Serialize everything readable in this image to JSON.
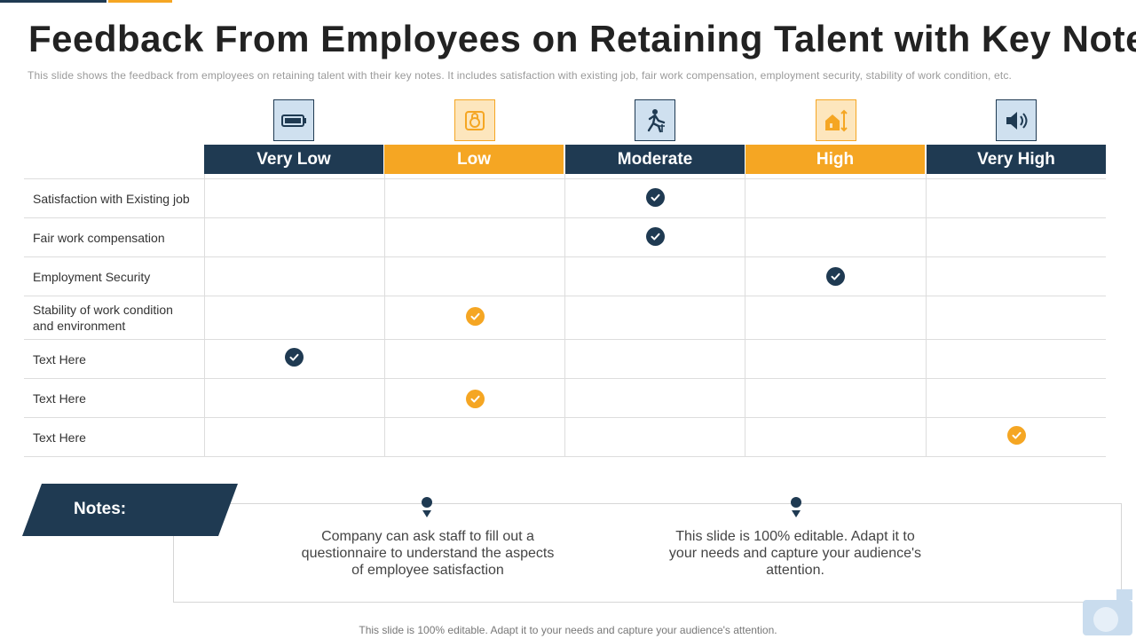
{
  "title": "Feedback From Employees on Retaining Talent with Key Notes",
  "subtitle": "This slide shows the feedback from employees on retaining talent with their key notes. It includes satisfaction with existing job, fair work compensation, employment security, stability of work condition, etc.",
  "columns": [
    {
      "label": "Very Low",
      "icon": "battery-icon",
      "color": "#1f3a52"
    },
    {
      "label": "Low",
      "icon": "lock-badge-icon",
      "color": "#f5a623"
    },
    {
      "label": "Moderate",
      "icon": "worker-climbing-icon",
      "color": "#1f3a52"
    },
    {
      "label": "High",
      "icon": "house-up-down-icon",
      "color": "#f5a623"
    },
    {
      "label": "Very High",
      "icon": "speaker-icon",
      "color": "#1f3a52"
    }
  ],
  "rows": [
    {
      "label": "Satisfaction with Existing job",
      "rating_column": 2,
      "check_color": "#1f3a52"
    },
    {
      "label": "Fair work compensation",
      "rating_column": 2,
      "check_color": "#1f3a52"
    },
    {
      "label": "Employment Security",
      "rating_column": 3,
      "check_color": "#1f3a52"
    },
    {
      "label": "Stability of work condition and environment",
      "rating_column": 1,
      "check_color": "#f5a623"
    },
    {
      "label": "Text Here",
      "rating_column": 0,
      "check_color": "#1f3a52"
    },
    {
      "label": "Text Here",
      "rating_column": 1,
      "check_color": "#f5a623"
    },
    {
      "label": "Text Here",
      "rating_column": 4,
      "check_color": "#f5a623"
    }
  ],
  "notes": {
    "label": "Notes:",
    "items": [
      "Company can ask staff to fill out a questionnaire to understand the aspects of employee satisfaction",
      "This slide is 100% editable. Adapt it to your needs and capture your audience's attention."
    ]
  },
  "footer": "This slide is 100% editable. Adapt it to your needs and capture your audience's attention.",
  "colors": {
    "navy": "#1f3a52",
    "orange": "#f5a623",
    "grid": "#dddddd"
  }
}
